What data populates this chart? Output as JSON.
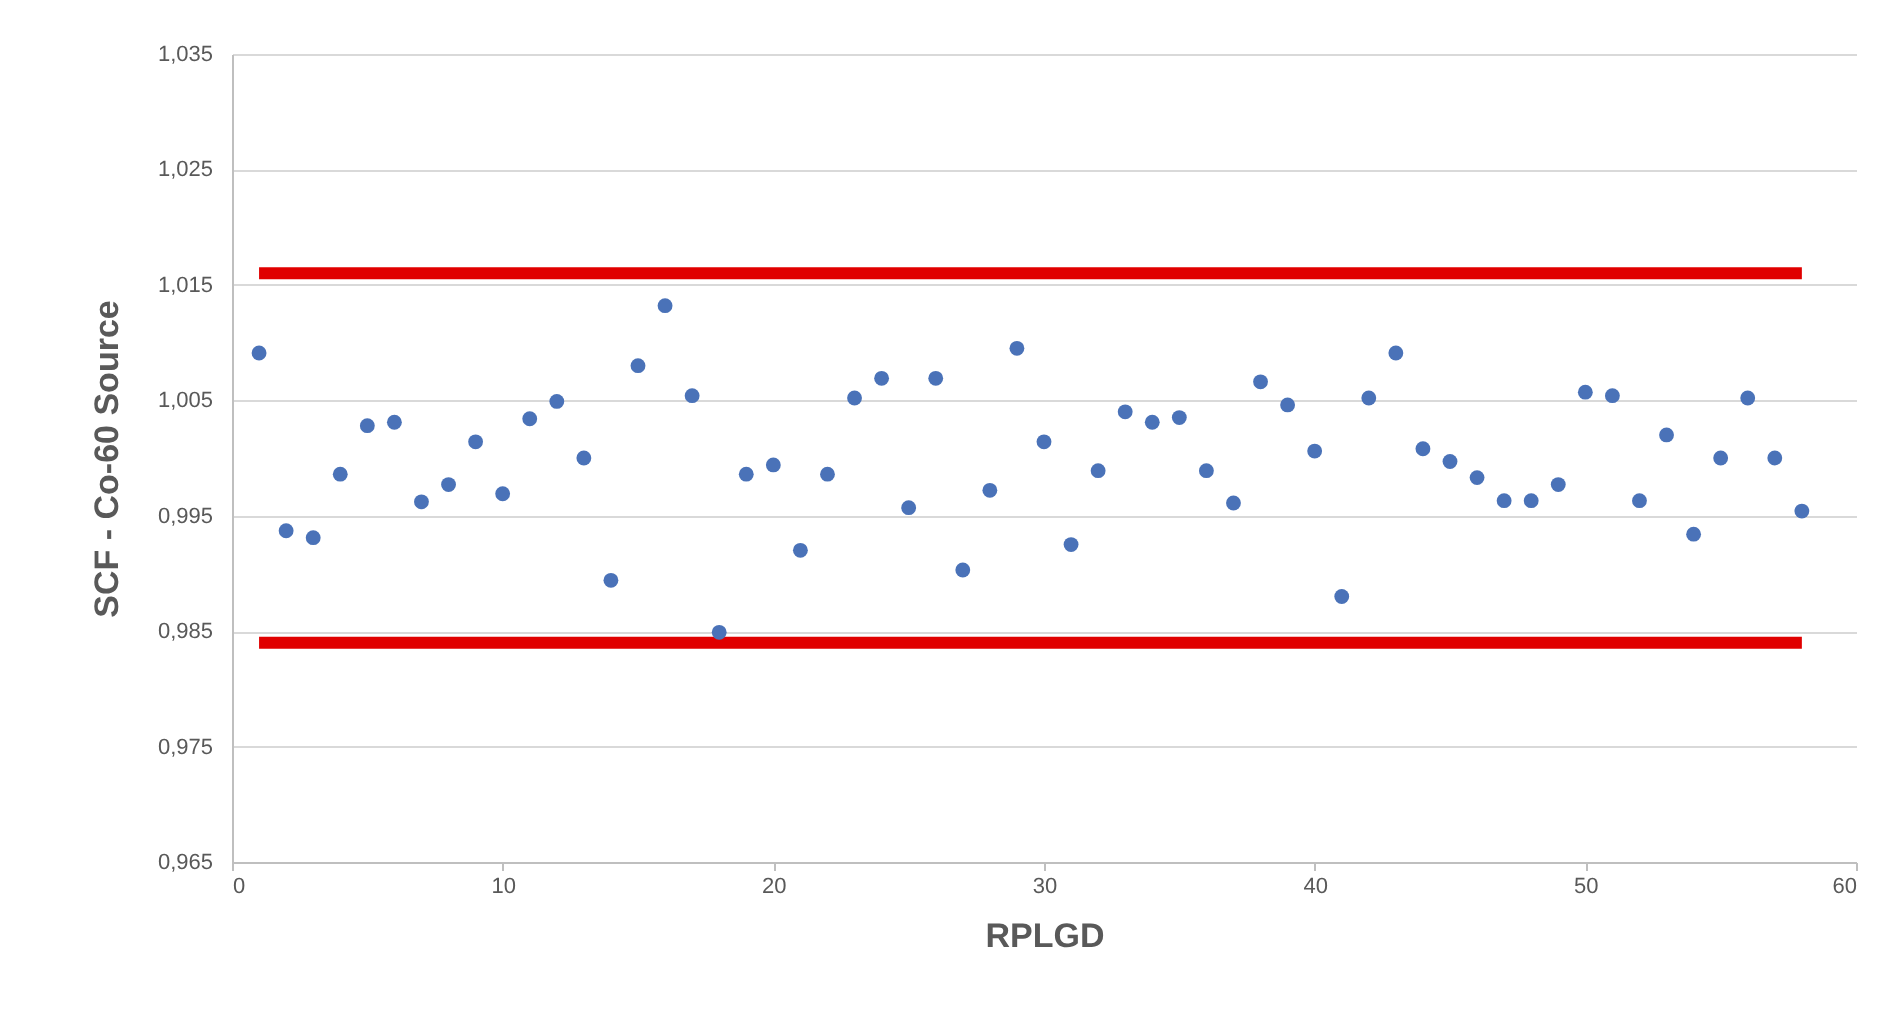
{
  "chart_data": {
    "type": "scatter",
    "xlabel": "RPLGD",
    "ylabel": "SCF - Co-60 Source",
    "xlim": [
      0,
      60
    ],
    "xticks": [
      0,
      10,
      20,
      30,
      40,
      50,
      60
    ],
    "ylim": [
      0.965,
      1.035
    ],
    "yticks": [
      {
        "value": 0.965,
        "label": "0,965"
      },
      {
        "value": 0.975,
        "label": "0,975"
      },
      {
        "value": 0.985,
        "label": "0,985"
      },
      {
        "value": 0.995,
        "label": "0,995"
      },
      {
        "value": 1.005,
        "label": "1,005"
      },
      {
        "value": 1.015,
        "label": "1,015"
      },
      {
        "value": 1.025,
        "label": "1,025"
      },
      {
        "value": 1.035,
        "label": "1,035"
      }
    ],
    "grid": "y",
    "series": [
      {
        "marker": "circle",
        "color": "#4a72b8",
        "x": [
          1,
          2,
          3,
          4,
          5,
          6,
          7,
          8,
          9,
          10,
          11,
          12,
          13,
          14,
          15,
          16,
          17,
          18,
          19,
          20,
          21,
          22,
          23,
          24,
          25,
          26,
          27,
          28,
          29,
          30,
          31,
          32,
          33,
          34,
          35,
          36,
          37,
          38,
          39,
          40,
          41,
          42,
          43,
          44,
          45,
          46,
          47,
          48,
          49,
          50,
          51,
          52,
          53,
          54,
          55,
          56,
          57,
          58
        ],
        "values": [
          1.0091,
          0.9937,
          0.9931,
          0.9986,
          1.0028,
          1.0031,
          0.9962,
          0.9977,
          1.0014,
          0.9969,
          1.0034,
          1.0049,
          1.0,
          0.9894,
          1.008,
          1.0132,
          1.0054,
          0.9849,
          0.9986,
          0.9994,
          0.992,
          0.9986,
          1.0052,
          1.0069,
          0.9957,
          1.0069,
          0.9903,
          0.9972,
          1.0095,
          1.0014,
          0.9925,
          0.9989,
          1.004,
          1.0031,
          1.0035,
          0.9989,
          0.9961,
          1.0066,
          1.0046,
          1.0006,
          0.988,
          1.0052,
          1.0091,
          1.0008,
          0.9997,
          0.9983,
          0.9963,
          0.9963,
          0.9977,
          1.0057,
          1.0054,
          0.9963,
          1.002,
          0.9934,
          1.0,
          1.0052,
          1.0,
          0.9954
        ]
      },
      {
        "type": "line",
        "color": "#e00000",
        "line_style": "solid",
        "x": [
          1,
          58
        ],
        "values": [
          1.016,
          1.016
        ]
      },
      {
        "type": "line",
        "color": "#e00000",
        "line_style": "solid",
        "x": [
          1,
          58
        ],
        "values": [
          0.984,
          0.984
        ]
      }
    ]
  }
}
